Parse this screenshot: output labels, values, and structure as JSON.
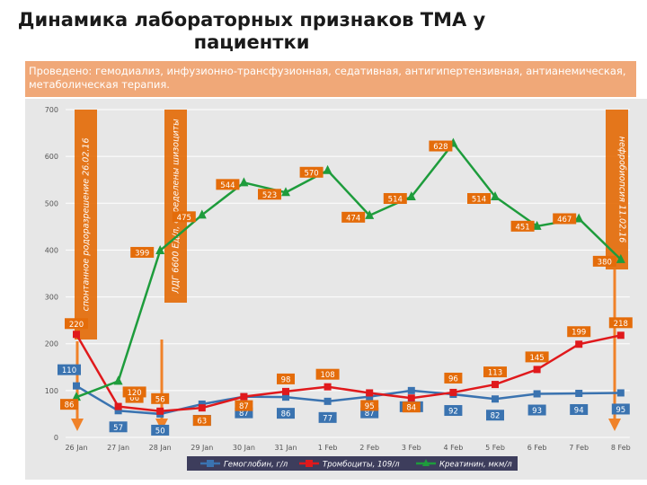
{
  "title_line1": "Динамика лабораторных признаков ТМА у",
  "title_line2": "пациентки",
  "banner": {
    "label": "Проведено:",
    "text": " гемодиализ, инфузионно-трансфузионная, седативная,  антигипертензивная, антианемическая,",
    "text2": "метаболическая терапия."
  },
  "colors": {
    "hemoglobin": "#3a73b0",
    "platelets": "#e0191c",
    "creatinine": "#1e9c3c",
    "label_bg": "#e46c0a",
    "arrow": "#f08229",
    "grid": "#ffffff",
    "plot_bg": "#e7e7e7",
    "banner_bg": "#f0a878"
  },
  "annotations": [
    {
      "text": "спонтанное родоразрешение 26.02.16",
      "category": "26 Jan"
    },
    {
      "text": "ЛДГ 6600 Ед/л, определены шизоциты",
      "category": "28 Jan"
    },
    {
      "text": "нефробиопсия 11.02.16",
      "category": "8 Feb"
    }
  ],
  "chart_data": {
    "type": "line",
    "title": "Динамика лабораторных признаков ТМА у пациентки",
    "categories": [
      "26 Jan",
      "27 Jan",
      "28 Jan",
      "29 Jan",
      "30 Jan",
      "31 Jan",
      "1 Feb",
      "2 Feb",
      "3 Feb",
      "4 Feb",
      "5 Feb",
      "6 Feb",
      "7 Feb",
      "8 Feb"
    ],
    "yticks": [
      "0",
      "100",
      "200",
      "300",
      "400",
      "500",
      "600",
      "700"
    ],
    "ylim": [
      0,
      700
    ],
    "grid": true,
    "legend": "bottom",
    "series": [
      {
        "name": "Гемоглобин, г/л",
        "color": "#3a73b0",
        "marker": "square",
        "values": [
          110,
          57,
          50,
          71,
          87,
          86,
          77,
          87,
          100,
          92,
          82,
          93,
          94,
          95
        ],
        "labels": [
          "110",
          "57",
          "50",
          "71",
          "87",
          "86",
          "77",
          "87",
          "100",
          "92",
          "82",
          "93",
          "94",
          "95"
        ]
      },
      {
        "name": "Тромбоциты, 109/л",
        "color": "#e0191c",
        "marker": "square",
        "values": [
          220,
          66,
          56,
          63,
          87,
          98,
          108,
          95,
          84,
          96,
          113,
          145,
          199,
          218
        ],
        "labels": [
          "220",
          "66",
          "56",
          "63",
          "87",
          "98",
          "108",
          "95",
          "84",
          "96",
          "113",
          "145",
          "199",
          "218"
        ]
      },
      {
        "name": "Креатинин, мкм/л",
        "color": "#1e9c3c",
        "marker": "triangle",
        "values": [
          86,
          120,
          399,
          475,
          544,
          523,
          570,
          474,
          514,
          628,
          514,
          451,
          467,
          380
        ],
        "labels": [
          "86",
          "120",
          "399",
          "475",
          "544",
          "523",
          "570",
          "474",
          "514",
          "628",
          "514",
          "451",
          "467",
          "380"
        ]
      }
    ]
  }
}
